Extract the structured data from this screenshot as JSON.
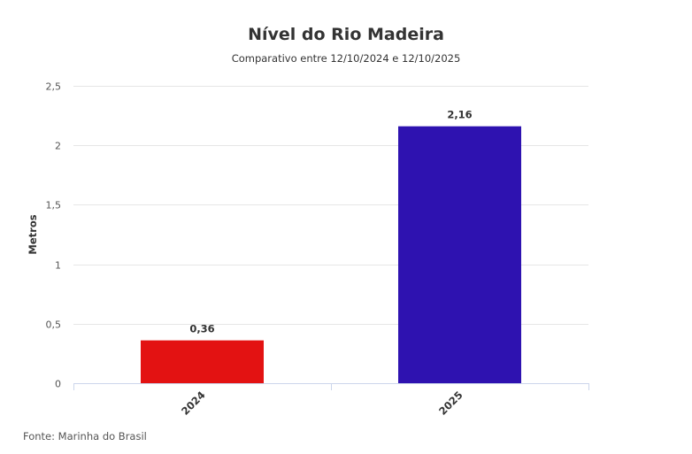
{
  "chart_data": {
    "type": "bar",
    "title": "Nível do Rio Madeira",
    "subtitle": "Comparativo entre 12/10/2024 e 12/10/2025",
    "ylabel": "Metros",
    "xlabel": "",
    "categories": [
      "2024",
      "2025"
    ],
    "values": [
      0.36,
      2.16
    ],
    "value_labels": [
      "0,36",
      "2,16"
    ],
    "colors": [
      "#e31212",
      "#2e12b0"
    ],
    "ylim": [
      0,
      2.5
    ],
    "yticks": [
      0,
      0.5,
      1,
      1.5,
      2,
      2.5
    ],
    "ytick_labels": [
      "0",
      "0,5",
      "1",
      "1,5",
      "2",
      "2,5"
    ],
    "grid": true,
    "legend": "none"
  },
  "source": "Fonte: Marinha do Brasil"
}
